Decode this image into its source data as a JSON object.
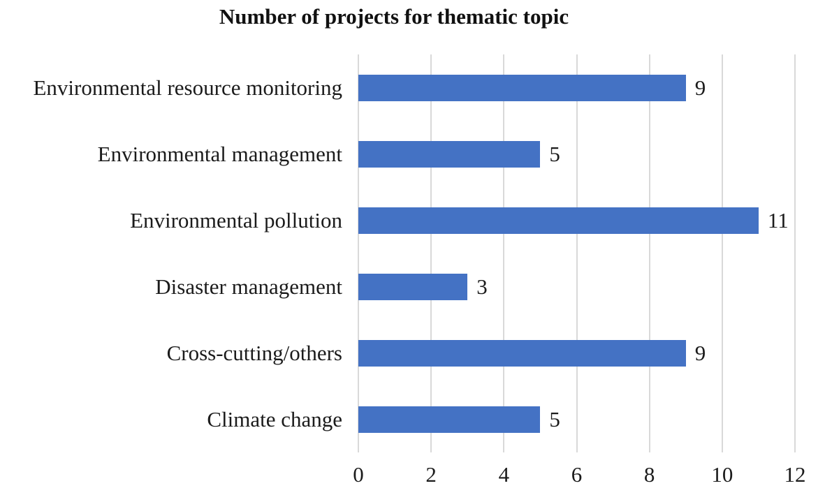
{
  "title": "Number of projects for thematic topic",
  "colors": {
    "bar": "#4472C4",
    "gridline": "#D9D9D9",
    "text": "#1b1b1b",
    "background": "#ffffff"
  },
  "chart_data": {
    "type": "bar",
    "orientation": "horizontal",
    "title": "Number of projects for thematic topic",
    "categories": [
      "Environmental resource monitoring",
      "Environmental management",
      "Environmental pollution",
      "Disaster management",
      "Cross-cutting/others",
      "Climate change"
    ],
    "values": [
      9,
      5,
      11,
      3,
      9,
      5
    ],
    "data_labels": [
      "9",
      "5",
      "11",
      "3",
      "9",
      "5"
    ],
    "xlabel": "",
    "ylabel": "",
    "xlim": [
      0,
      12
    ],
    "xticks": [
      0,
      2,
      4,
      6,
      8,
      10,
      12
    ],
    "grid": true,
    "legend": false
  }
}
